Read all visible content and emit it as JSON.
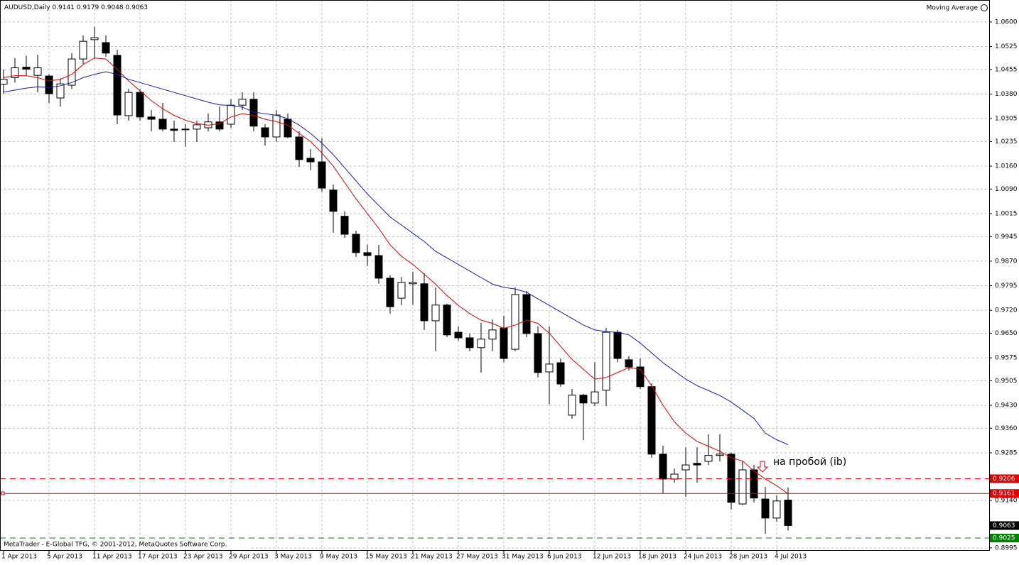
{
  "chart_data": {
    "type": "candlestick",
    "symbol": "AUDUSD,Daily",
    "indicator_label": "Moving Average",
    "copyright": "MetaTrader - E-Global TFG, © 2001-2012, MetaQuotes Software Corp.",
    "annotation": "на пробой (ib)",
    "categories": [
      "1 Apr 2013",
      null,
      null,
      null,
      "5 Apr 2013",
      null,
      null,
      null,
      "11 Apr 2013",
      null,
      null,
      null,
      "17 Apr 2013",
      null,
      null,
      null,
      "23 Apr 2013",
      null,
      null,
      null,
      "29 Apr 2013",
      null,
      null,
      null,
      "3 May 2013",
      null,
      null,
      null,
      "9 May 2013",
      null,
      null,
      null,
      "15 May 2013",
      null,
      null,
      null,
      "21 May 2013",
      null,
      null,
      null,
      "27 May 2013",
      null,
      null,
      null,
      "31 May 2013",
      null,
      null,
      null,
      "6 Jun 2013",
      null,
      null,
      null,
      "12 Jun 2013",
      null,
      null,
      null,
      "18 Jun 2013",
      null,
      null,
      null,
      "24 Jun 2013",
      null,
      null,
      null,
      "28 Jun 2013",
      null,
      null,
      null,
      "4 Jul 2013",
      null
    ],
    "open": [
      1.041,
      1.043,
      1.0462,
      1.0437,
      1.0435,
      1.0368,
      1.0407,
      1.0487,
      1.0546,
      1.0537,
      1.0498,
      1.0314,
      1.0385,
      1.031,
      1.0303,
      1.0273,
      1.0271,
      1.0273,
      1.0277,
      1.0295,
      1.0288,
      1.0346,
      1.0364,
      1.0277,
      1.0249,
      1.0303,
      1.0249,
      1.0184,
      1.0173,
      1.0087,
      1.0007,
      0.9952,
      0.9896,
      0.9887,
      0.9818,
      0.9757,
      0.9801,
      0.9801,
      0.9688,
      0.9736,
      0.9653,
      0.9636,
      0.9606,
      0.9632,
      0.9666,
      0.9601,
      0.9768,
      0.9649,
      0.9532,
      0.956,
      0.94,
      0.9461,
      0.9437,
      0.9476,
      0.9653,
      0.9569,
      0.9547,
      0.9487,
      0.9281,
      0.9205,
      0.9233,
      0.9253,
      0.9259,
      0.9277,
      0.9281,
      0.9129,
      0.9233,
      0.9144,
      0.9086,
      0.9141
    ],
    "high": [
      1.0455,
      1.049,
      1.0497,
      1.05,
      1.044,
      1.0428,
      1.0505,
      1.0559,
      1.0585,
      1.0559,
      1.0515,
      1.0396,
      1.0396,
      1.0331,
      1.0353,
      1.0299,
      1.0288,
      1.0299,
      1.0321,
      1.0342,
      1.0364,
      1.0385,
      1.0385,
      1.0288,
      1.0331,
      1.0321,
      1.0266,
      1.0212,
      1.0245,
      1.0104,
      1.0022,
      0.9963,
      0.992,
      0.992,
      0.9827,
      0.9822,
      0.9838,
      0.9833,
      0.979,
      0.974,
      0.9671,
      0.9649,
      0.9682,
      0.9692,
      0.9703,
      0.979,
      0.9779,
      0.9671,
      0.9671,
      0.9573,
      0.948,
      0.9465,
      0.9562,
      0.9666,
      0.966,
      0.958,
      0.9573,
      0.9497,
      0.9307,
      0.9237,
      0.9302,
      0.9302,
      0.9342,
      0.9342,
      0.9285,
      0.9259,
      0.9248,
      0.9181,
      0.9155,
      0.9179
    ],
    "low": [
      1.038,
      1.0415,
      1.0436,
      1.0385,
      1.0353,
      1.0342,
      1.0396,
      1.0472,
      1.0487,
      1.0494,
      1.0288,
      1.0299,
      1.0299,
      1.0266,
      1.0266,
      1.0234,
      1.0219,
      1.0234,
      1.0266,
      1.0266,
      1.0277,
      1.0331,
      1.0266,
      1.0223,
      1.0234,
      1.0245,
      1.0158,
      1.0147,
      1.0082,
      0.9957,
      0.9941,
      0.9883,
      0.9855,
      0.9801,
      0.971,
      0.9736,
      0.9736,
      0.966,
      0.9595,
      0.9638,
      0.9627,
      0.9595,
      0.953,
      0.9595,
      0.9562,
      0.9595,
      0.9638,
      0.9515,
      0.9433,
      0.9487,
      0.9389,
      0.9324,
      0.9428,
      0.9428,
      0.9562,
      0.9536,
      0.948,
      0.927,
      0.9162,
      0.9194,
      0.9151,
      0.9194,
      0.9248,
      0.9259,
      0.9112,
      0.9125,
      0.9134,
      0.9038,
      0.9075,
      0.9048
    ],
    "close": [
      1.0425,
      1.046,
      1.0456,
      1.046,
      1.0381,
      1.0411,
      1.0487,
      1.0541,
      1.0552,
      1.0505,
      1.0316,
      1.0385,
      1.031,
      1.0303,
      1.0273,
      1.0269,
      1.0273,
      1.0286,
      1.0295,
      1.0273,
      1.0346,
      1.0364,
      1.0282,
      1.0249,
      1.0316,
      1.0249,
      1.018,
      1.0173,
      1.0093,
      1.0022,
      0.9952,
      0.9896,
      0.9887,
      0.9818,
      0.9731,
      0.9805,
      0.9805,
      0.9688,
      0.9736,
      0.9645,
      0.9636,
      0.9606,
      0.9632,
      0.966,
      0.9573,
      0.9768,
      0.9649,
      0.953,
      0.9556,
      0.9495,
      0.9461,
      0.9437,
      0.9471,
      0.9653,
      0.9573,
      0.9547,
      0.9487,
      0.9281,
      0.9205,
      0.922,
      0.9248,
      0.9248,
      0.9277,
      0.9281,
      0.9134,
      0.9233,
      0.9147,
      0.9086,
      0.9138,
      0.9063
    ],
    "moving_averages": [
      {
        "color": "#e00000",
        "values": [
          1.043,
          1.0436,
          1.0436,
          1.043,
          1.042,
          1.0425,
          1.044,
          1.047,
          1.049,
          1.0487,
          1.0455,
          1.042,
          1.039,
          1.036,
          1.0335,
          1.0315,
          1.03,
          1.029,
          1.0285,
          1.029,
          1.031,
          1.032,
          1.0315,
          1.0303,
          1.0296,
          1.0285,
          1.026,
          1.0235,
          1.02,
          1.016,
          1.011,
          1.006,
          1.0015,
          0.997,
          0.992,
          0.9885,
          0.986,
          0.983,
          0.98,
          0.9765,
          0.9735,
          0.971,
          0.969,
          0.968,
          0.9665,
          0.9675,
          0.969,
          0.968,
          0.965,
          0.961,
          0.957,
          0.954,
          0.951,
          0.9515,
          0.953,
          0.9545,
          0.954,
          0.949,
          0.943,
          0.938,
          0.9345,
          0.932,
          0.9305,
          0.929,
          0.927,
          0.926,
          0.923,
          0.9205,
          0.9185,
          0.916
        ]
      },
      {
        "color": "#1a1aa6",
        "values": [
          1.0386,
          1.0392,
          1.0398,
          1.0402,
          1.04,
          1.0405,
          1.0415,
          1.043,
          1.044,
          1.0448,
          1.044,
          1.0425,
          1.0415,
          1.0405,
          1.0395,
          1.0385,
          1.0375,
          1.0365,
          1.0355,
          1.0347,
          1.0345,
          1.034,
          1.0325,
          1.032,
          1.0315,
          1.0305,
          1.0285,
          1.026,
          1.023,
          1.0195,
          1.0155,
          1.0115,
          1.0075,
          1.004,
          1.0005,
          0.998,
          0.9955,
          0.993,
          0.99,
          0.988,
          0.986,
          0.984,
          0.982,
          0.98,
          0.979,
          0.9785,
          0.9775,
          0.9755,
          0.9735,
          0.9715,
          0.9695,
          0.9675,
          0.966,
          0.9655,
          0.9653,
          0.9645,
          0.962,
          0.959,
          0.956,
          0.9535,
          0.951,
          0.949,
          0.9475,
          0.946,
          0.944,
          0.9415,
          0.939,
          0.9345,
          0.9325,
          0.931
        ]
      }
    ],
    "levels": [
      {
        "value": 0.9206,
        "color": "#e00000",
        "style": "dashed"
      },
      {
        "value": 0.9161,
        "color": "#e00000",
        "style": "solid"
      },
      {
        "value": 0.9025,
        "color": "#008000",
        "style": "dashed"
      }
    ],
    "ylim": [
      0.8986,
      1.0667
    ],
    "yticks": [
      {
        "value": 1.06,
        "label": "1.0600"
      },
      1.0525,
      1.0455,
      {
        "value": 1.038,
        "label": "1.0380"
      },
      1.0305,
      1.0235,
      {
        "value": 1.016,
        "label": "1.0160"
      },
      {
        "value": 1.009,
        "label": "1.0090"
      },
      1.0015,
      0.9945,
      {
        "value": 0.987,
        "label": "0.9870"
      },
      0.9795,
      {
        "value": 0.972,
        "label": "0.9720"
      },
      {
        "value": 0.965,
        "label": "0.9650"
      },
      0.9575,
      0.9505,
      {
        "value": 0.943,
        "label": "0.9430"
      },
      {
        "value": 0.936,
        "label": "0.9360"
      },
      0.9285,
      {
        "value": 0.914,
        "label": "0.9140"
      },
      0.8995
    ],
    "grid": true
  }
}
